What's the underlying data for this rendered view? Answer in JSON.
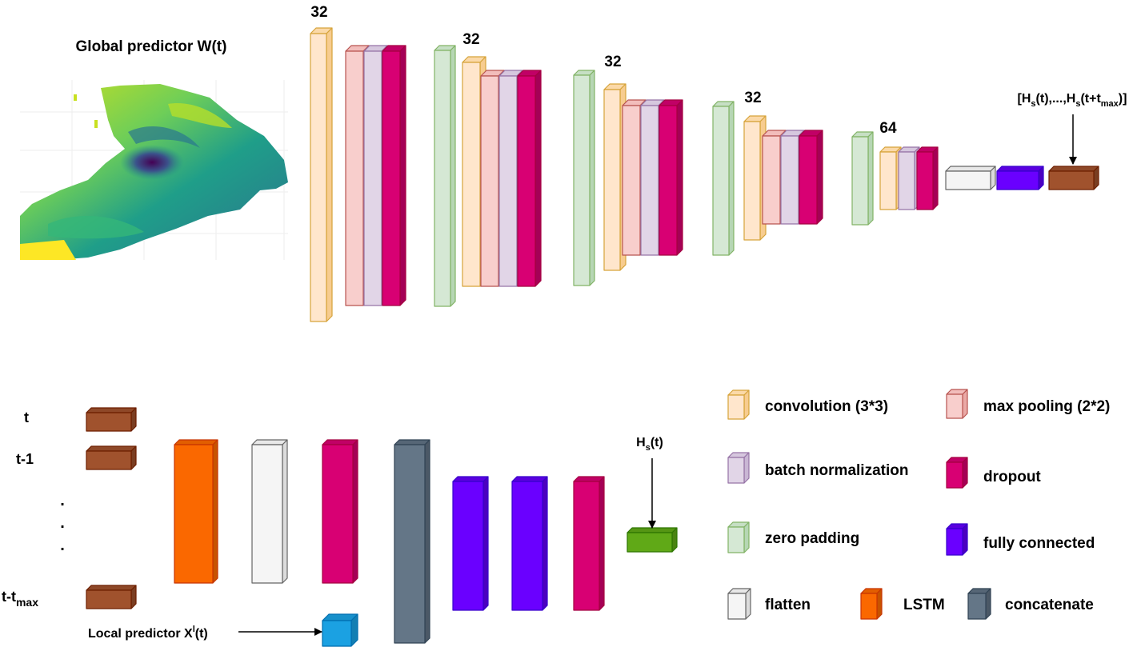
{
  "colors": {
    "conv": {
      "front": "#ffe6cc",
      "side": "#f7cc8f",
      "top": "#fbd9a8",
      "stroke": "#d6a33a"
    },
    "pool": {
      "front": "#f8cecc",
      "side": "#eaa9a6",
      "top": "#f2bdbb",
      "stroke": "#b85450"
    },
    "bn": {
      "front": "#e1d5e7",
      "side": "#c9b6d4",
      "top": "#d6c7de",
      "stroke": "#9673a6"
    },
    "drop": {
      "front": "#d80073",
      "side": "#a50056",
      "top": "#c10066",
      "stroke": "#a50040"
    },
    "zero": {
      "front": "#d5e8d4",
      "side": "#b6d6b4",
      "top": "#c6dfc4",
      "stroke": "#82b366"
    },
    "flat": {
      "front": "#f5f5f5",
      "side": "#dcdcdc",
      "top": "#e8e8e8",
      "stroke": "#666666"
    },
    "fc": {
      "front": "#6a00ff",
      "side": "#4c00c0",
      "top": "#5a00df",
      "stroke": "#3700cc"
    },
    "lstm": {
      "front": "#fa6800",
      "side": "#c75300",
      "top": "#e25e00",
      "stroke": "#c73500"
    },
    "concat": {
      "front": "#647687",
      "side": "#4b5866",
      "top": "#566676",
      "stroke": "#314354"
    },
    "hs": {
      "front": "#a0522d",
      "side": "#7a3e22",
      "top": "#8e4828",
      "stroke": "#6d1f00"
    },
    "local": {
      "front": "#1ba1e2",
      "side": "#137fb3",
      "top": "#1790cb",
      "stroke": "#006eaf"
    },
    "out": {
      "front": "#60a917",
      "side": "#4a8311",
      "top": "#559614",
      "stroke": "#2d7600"
    }
  },
  "top": {
    "title": "Global predictor W(t)",
    "block_labels": [
      "32",
      "32",
      "32",
      "32",
      "64"
    ],
    "output_main": "[H",
    "output_sub1": "s",
    "output_mid": "(t),...,H",
    "output_sub2": "s",
    "output_mid2": "(t+t",
    "output_sub3": "max",
    "output_end": ")]"
  },
  "bottom": {
    "time_labels": [
      "t",
      "t-1"
    ],
    "dots": [
      ".",
      ".",
      "."
    ],
    "time_last_main": "t-t",
    "time_last_sub": "max",
    "local_main": "Local predictor X",
    "local_sup": "l",
    "local_end": "(t)",
    "hs_main": "H",
    "hs_sub": "s",
    "hs_end": "(t)"
  },
  "legend": {
    "conv": "convolution (3*3)",
    "pool": "max pooling (2*2)",
    "bn": "batch normalization",
    "drop": "dropout",
    "zero": "zero padding",
    "fc": "fully connected",
    "flat": "flatten",
    "lstm": "LSTM",
    "concat": "concatenate"
  }
}
